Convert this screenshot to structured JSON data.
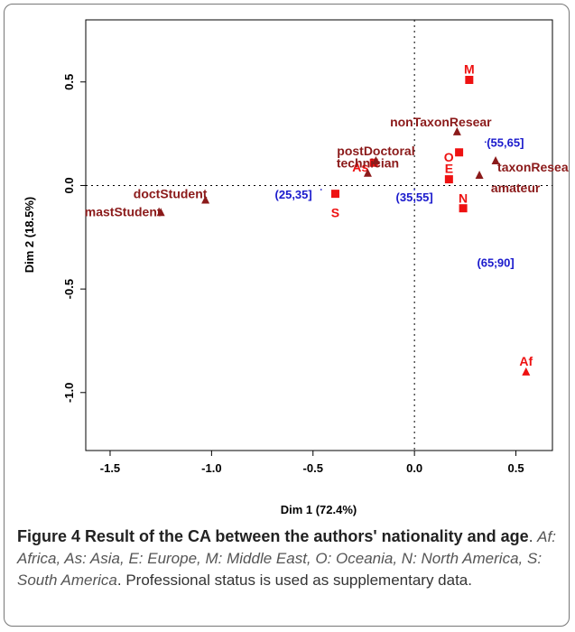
{
  "figure": {
    "caption_title": "Figure 4 Result of the CA between the authors' nationality and age",
    "caption_period": ".",
    "caption_legend": "Af: Africa, As: Asia, E: Europe, M: Middle East, O: Oceania, N: North America, S: South America",
    "caption_rest": ". Professional status is used as supplementary data."
  },
  "chart_data": {
    "type": "scatter",
    "xlabel": "Dim 1 (72.4%)",
    "ylabel": "Dim 2 (18.5%)",
    "xlim": [
      -1.62,
      0.68
    ],
    "ylim": [
      -1.28,
      0.8
    ],
    "xticks": [
      -1.5,
      -1.0,
      -0.5,
      0.0,
      0.5
    ],
    "xtick_labels": [
      "-1.5",
      "-1.0",
      "-0.5",
      "0.0",
      "0.5"
    ],
    "yticks": [
      -1.0,
      -0.5,
      0.0,
      0.5
    ],
    "ytick_labels": [
      "-1.0",
      "-0.5",
      "0.0",
      "0.5"
    ],
    "reference_lines": {
      "x": 0,
      "y": 0
    },
    "colors": {
      "nationality": "#ee1111",
      "status": "#8b1a1a",
      "age": "#1a1acc"
    },
    "series": [
      {
        "key": "nationality",
        "marker": "square",
        "points": [
          {
            "label": "M",
            "x": 0.27,
            "y": 0.51
          },
          {
            "label": "O",
            "x": 0.22,
            "y": 0.16
          },
          {
            "label": "As",
            "x": -0.2,
            "y": 0.11
          },
          {
            "label": "E",
            "x": 0.17,
            "y": 0.03
          },
          {
            "label": "S",
            "x": -0.39,
            "y": -0.04
          },
          {
            "label": "N",
            "x": 0.24,
            "y": -0.11
          },
          {
            "label": "Af",
            "x": 0.55,
            "y": -0.9,
            "marker": "triangle"
          }
        ]
      },
      {
        "key": "status",
        "marker": "triangle",
        "points": [
          {
            "label": "nonTaxonResear",
            "x": 0.21,
            "y": 0.26
          },
          {
            "label": "postDoctoral",
            "x": -0.19,
            "y": 0.12
          },
          {
            "label": "technician",
            "x": -0.23,
            "y": 0.06
          },
          {
            "label": "taxonResear",
            "x": 0.4,
            "y": 0.12
          },
          {
            "label": "amateur",
            "x": 0.32,
            "y": 0.05
          },
          {
            "label": "doctStudent",
            "x": -1.03,
            "y": -0.07
          },
          {
            "label": "mastStudent",
            "x": -1.25,
            "y": -0.13
          }
        ]
      },
      {
        "key": "age",
        "marker": "dot",
        "points": [
          {
            "label": "(55,65]",
            "x": 0.35,
            "y": 0.21
          },
          {
            "label": "(25,35]",
            "x": -0.46,
            "y": -0.02
          },
          {
            "label": "(35,55]",
            "x": 0.0,
            "y": -0.02
          },
          {
            "label": "(65,90]",
            "x": 0.4,
            "y": -0.37
          }
        ]
      }
    ]
  }
}
